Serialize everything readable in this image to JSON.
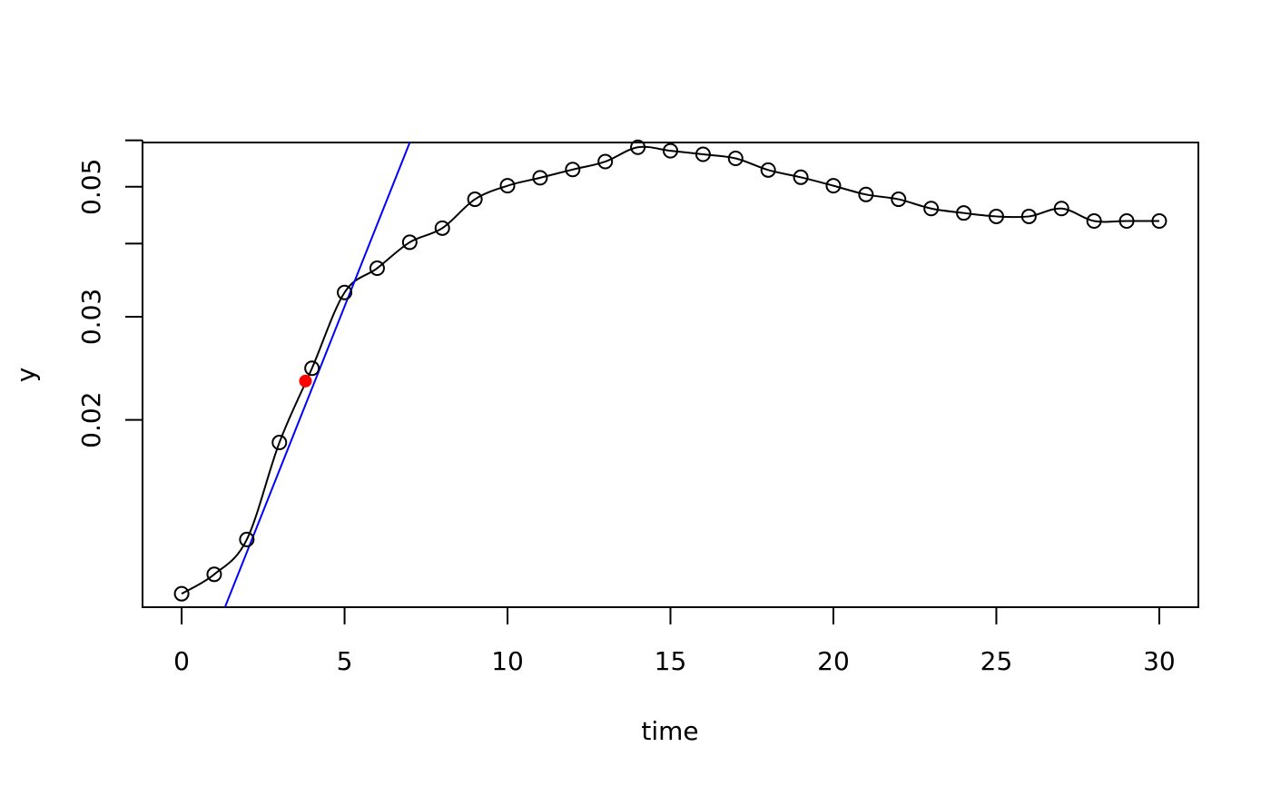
{
  "chart_data": {
    "type": "scatter",
    "title": "",
    "xlabel": "time",
    "ylabel": "y",
    "y_scale": "log",
    "xlim": [
      -1.2,
      31.2
    ],
    "ylim": [
      0.00958,
      0.0595
    ],
    "x_ticks": [
      {
        "value": 0,
        "label": "0"
      },
      {
        "value": 5,
        "label": "5"
      },
      {
        "value": 10,
        "label": "10"
      },
      {
        "value": 15,
        "label": "15"
      },
      {
        "value": 20,
        "label": "20"
      },
      {
        "value": 25,
        "label": "25"
      },
      {
        "value": 30,
        "label": "30"
      }
    ],
    "y_ticks": [
      {
        "value": 0.02,
        "label": "0.02"
      },
      {
        "value": 0.03,
        "label": "0.03"
      },
      {
        "value": 0.04,
        "label": ""
      },
      {
        "value": 0.05,
        "label": "0.05"
      },
      {
        "value": 0.06,
        "label": ""
      }
    ],
    "grid": false,
    "series": [
      {
        "kind": "points",
        "marker": "open-circle",
        "color": "#000000",
        "x": [
          0,
          1,
          2,
          3,
          4,
          5,
          6,
          7,
          8,
          9,
          10,
          11,
          12,
          13,
          14,
          15,
          16,
          17,
          18,
          19,
          20,
          21,
          22,
          23,
          24,
          25,
          26,
          27,
          28,
          29,
          30
        ],
        "y": [
          0.0101,
          0.0109,
          0.0125,
          0.0183,
          0.0245,
          0.033,
          0.0363,
          0.0402,
          0.0425,
          0.0476,
          0.0502,
          0.0518,
          0.0535,
          0.0552,
          0.0584,
          0.0576,
          0.0568,
          0.0559,
          0.0534,
          0.0519,
          0.0502,
          0.0485,
          0.0476,
          0.0459,
          0.0451,
          0.0445,
          0.0445,
          0.0459,
          0.0437,
          0.0437,
          0.0437
        ]
      },
      {
        "kind": "smooth-line",
        "color": "#000000"
      },
      {
        "kind": "tangent-line",
        "color": "#0000ff",
        "x": [
          1.33,
          7.0
        ],
        "y": [
          0.00958,
          0.0595
        ]
      },
      {
        "kind": "highlight-point",
        "marker": "filled-circle",
        "color": "#ff0000",
        "x": [
          3.8
        ],
        "y": [
          0.0233
        ]
      }
    ]
  }
}
